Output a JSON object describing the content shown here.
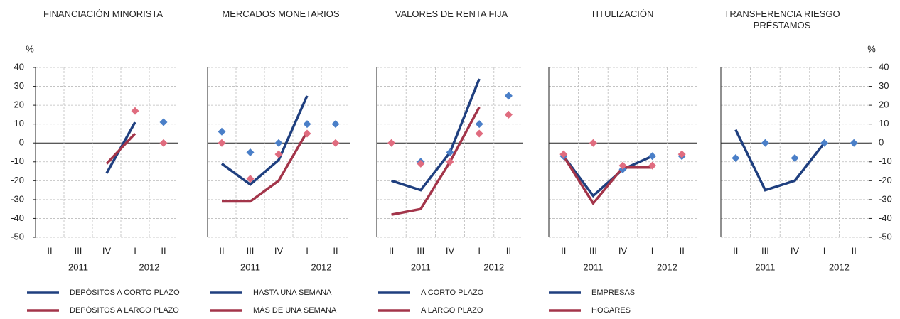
{
  "chart_data": [
    {
      "type": "line",
      "title": "FINANCIACIÓN MINORISTA",
      "y_unit": "%",
      "ytick_side": "left",
      "categories": [
        "II",
        "III",
        "IV",
        "I",
        "II"
      ],
      "year_labels": [
        "2011",
        "2012"
      ],
      "ylim": [
        -50,
        40
      ],
      "yticks": [
        -50,
        -40,
        -30,
        -20,
        -10,
        0,
        10,
        20,
        30,
        40
      ],
      "grid": true,
      "series": [
        {
          "name": "DEPÓSITOS A CORTO PLAZO",
          "color": "#1f3f7f",
          "style": "line",
          "values": [
            null,
            null,
            -16,
            11,
            null
          ]
        },
        {
          "name": "DEPÓSITOS A LARGO PLAZO",
          "color": "#a3354a",
          "style": "line",
          "values": [
            null,
            null,
            -11,
            5,
            null
          ]
        },
        {
          "color": "#4a7fc8",
          "style": "marker",
          "values": [
            null,
            null,
            null,
            null,
            11
          ]
        },
        {
          "color": "#e06c7f",
          "style": "marker",
          "values": [
            null,
            null,
            null,
            17,
            0
          ]
        }
      ]
    },
    {
      "type": "line",
      "title": "MERCADOS MONETARIOS",
      "categories": [
        "II",
        "III",
        "IV",
        "I",
        "II"
      ],
      "year_labels": [
        "2011",
        "2012"
      ],
      "ylim": [
        -50,
        40
      ],
      "yticks": [
        -50,
        -40,
        -30,
        -20,
        -10,
        0,
        10,
        20,
        30,
        40
      ],
      "grid": true,
      "series": [
        {
          "name": "HASTA UNA SEMANA",
          "color": "#1f3f7f",
          "style": "line",
          "values": [
            -11,
            -22,
            -9,
            25,
            null
          ]
        },
        {
          "name": "MÁS DE UNA SEMANA",
          "color": "#a3354a",
          "style": "line",
          "values": [
            -31,
            -31,
            -20,
            6,
            null
          ]
        },
        {
          "color": "#4a7fc8",
          "style": "marker",
          "values": [
            6,
            -5,
            0,
            10,
            10
          ]
        },
        {
          "color": "#e06c7f",
          "style": "marker",
          "values": [
            0,
            -19,
            -6,
            5,
            0
          ]
        }
      ]
    },
    {
      "type": "line",
      "title": "VALORES DE RENTA FIJA",
      "categories": [
        "II",
        "III",
        "IV",
        "I",
        "II"
      ],
      "year_labels": [
        "2011",
        "2012"
      ],
      "ylim": [
        -50,
        40
      ],
      "yticks": [
        -50,
        -40,
        -30,
        -20,
        -10,
        0,
        10,
        20,
        30,
        40
      ],
      "grid": true,
      "series": [
        {
          "name": "A CORTO PLAZO",
          "color": "#1f3f7f",
          "style": "line",
          "values": [
            -20,
            -25,
            -5,
            34,
            null
          ]
        },
        {
          "name": "A LARGO PLAZO",
          "color": "#a3354a",
          "style": "line",
          "values": [
            -38,
            -35,
            -10,
            19,
            null
          ]
        },
        {
          "color": "#4a7fc8",
          "style": "marker",
          "values": [
            null,
            -10,
            -5,
            10,
            25
          ]
        },
        {
          "color": "#e06c7f",
          "style": "marker",
          "values": [
            0,
            -11,
            -10,
            5,
            15
          ]
        }
      ]
    },
    {
      "type": "line",
      "title": "TITULIZACIÓN",
      "categories": [
        "II",
        "III",
        "IV",
        "I",
        "II"
      ],
      "year_labels": [
        "2011",
        "2012"
      ],
      "ylim": [
        -50,
        40
      ],
      "yticks": [
        -50,
        -40,
        -30,
        -20,
        -10,
        0,
        10,
        20,
        30,
        40
      ],
      "grid": true,
      "series": [
        {
          "name": "EMPRESAS",
          "color": "#1f3f7f",
          "style": "line",
          "values": [
            -7,
            -28,
            -14,
            -7,
            null
          ]
        },
        {
          "name": "HOGARES",
          "color": "#a3354a",
          "style": "line",
          "values": [
            -7,
            -32,
            -13,
            -13,
            null
          ]
        },
        {
          "color": "#4a7fc8",
          "style": "marker",
          "values": [
            -7,
            null,
            -14,
            -7,
            -7
          ]
        },
        {
          "color": "#e06c7f",
          "style": "marker",
          "values": [
            -6,
            0,
            -12,
            -12,
            -6
          ]
        }
      ]
    },
    {
      "type": "line",
      "title": "TRANSFERENCIA RIESGO PRÉSTAMOS",
      "y_unit": "%",
      "ytick_side": "right",
      "categories": [
        "II",
        "III",
        "IV",
        "I",
        "II"
      ],
      "year_labels": [
        "2011",
        "2012"
      ],
      "ylim": [
        -50,
        40
      ],
      "yticks": [
        -50,
        -40,
        -30,
        -20,
        -10,
        0,
        10,
        20,
        30,
        40
      ],
      "grid": true,
      "series": [
        {
          "color": "#1f3f7f",
          "style": "line",
          "values": [
            7,
            -25,
            -20,
            0,
            null
          ]
        },
        {
          "color": "#4a7fc8",
          "style": "marker",
          "values": [
            -8,
            0,
            -8,
            0,
            0
          ]
        }
      ]
    }
  ]
}
